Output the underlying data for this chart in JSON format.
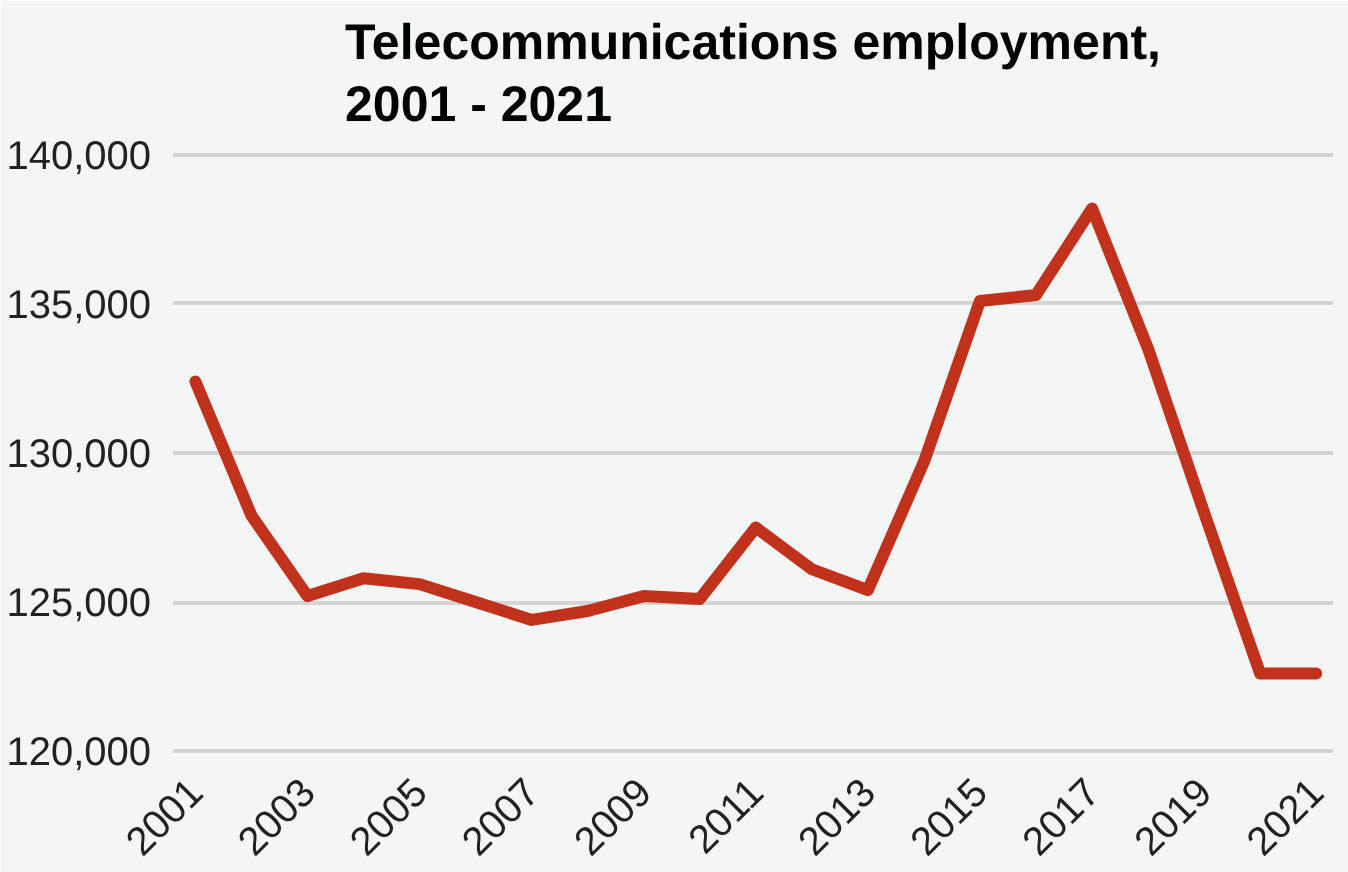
{
  "chart_data": {
    "type": "line",
    "title": "Telecommunications employment,\n2001 - 2021",
    "x": [
      2001,
      2002,
      2003,
      2004,
      2005,
      2006,
      2007,
      2008,
      2009,
      2010,
      2011,
      2012,
      2013,
      2014,
      2015,
      2016,
      2017,
      2018,
      2019,
      2020,
      2021
    ],
    "series": [
      {
        "color": "#c0321c",
        "values": [
          132400,
          127900,
          125200,
          125800,
          125600,
          125000,
          124400,
          124700,
          125200,
          125100,
          127500,
          126100,
          125400,
          129700,
          135100,
          135300,
          138200,
          133500,
          128000,
          122600,
          122600
        ]
      }
    ],
    "xlim": [
      2000.6,
      2021.3
    ],
    "xticks": [
      2001,
      2003,
      2005,
      2007,
      2009,
      2011,
      2013,
      2015,
      2017,
      2019,
      2021
    ],
    "ylim": [
      119600,
      140400
    ],
    "yticks": [
      {
        "value": 120000,
        "label": "120,000"
      },
      {
        "value": 125000,
        "label": "125,000"
      },
      {
        "value": 130000,
        "label": "130,000"
      },
      {
        "value": 135000,
        "label": "135,000"
      },
      {
        "value": 140000,
        "label": "140,000"
      }
    ],
    "grid": "y",
    "marker": "none",
    "line_style": "solid"
  }
}
